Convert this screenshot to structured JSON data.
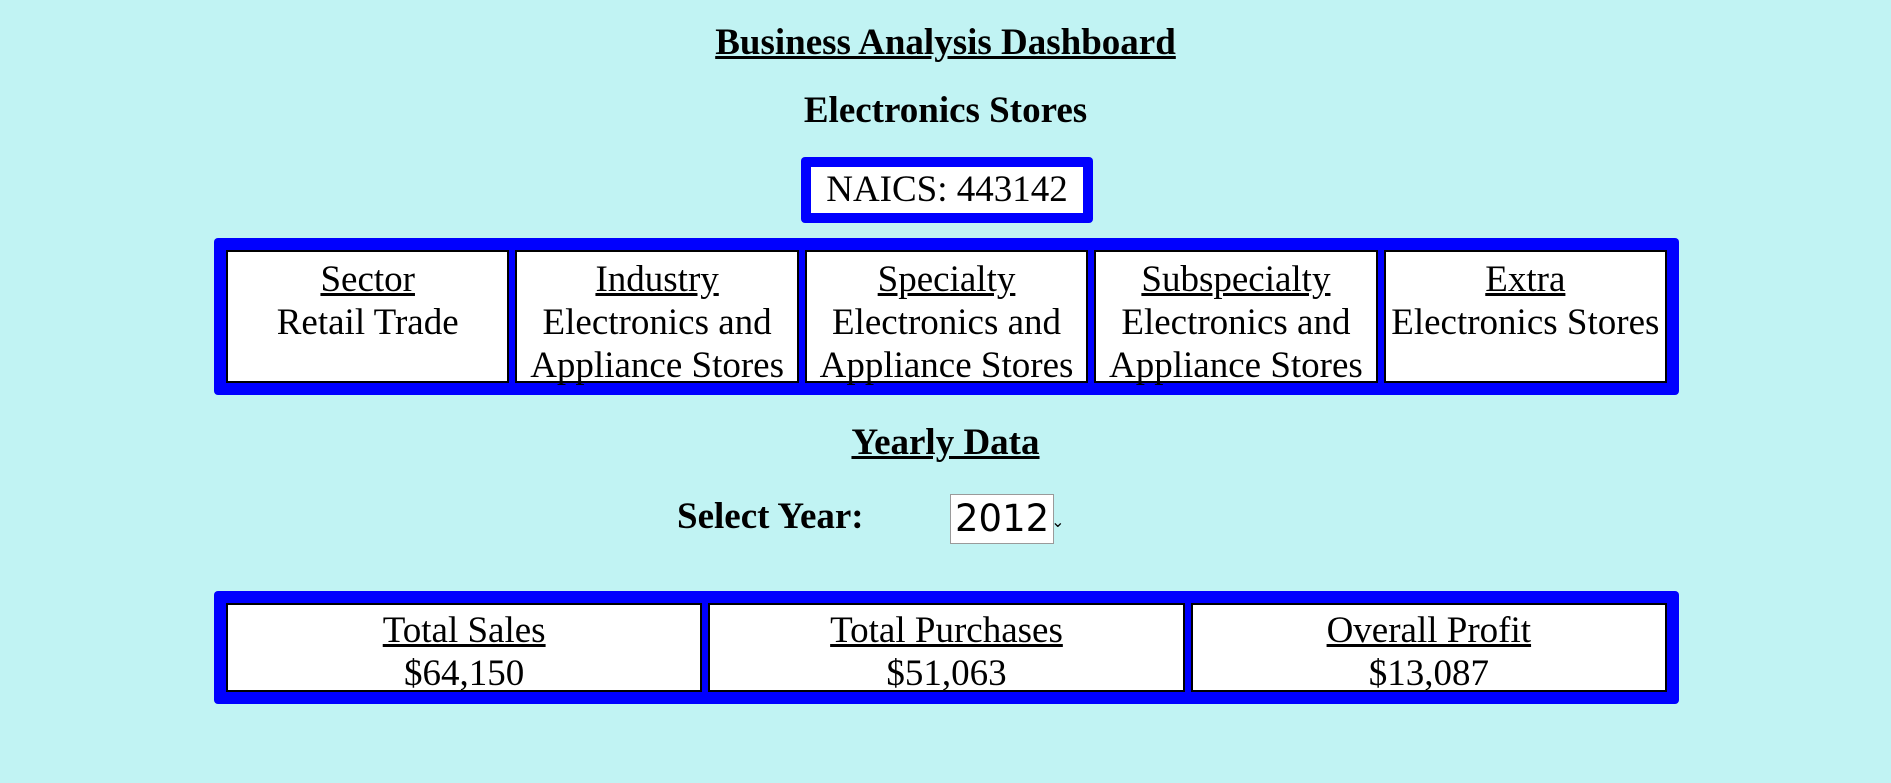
{
  "header": {
    "title": "Business Analysis Dashboard",
    "subtitle": "Electronics Stores"
  },
  "naics": {
    "text": "NAICS: 443142"
  },
  "classification": [
    {
      "label": "Sector",
      "value": "Retail Trade"
    },
    {
      "label": "Industry",
      "value": "Electronics and Appliance Stores"
    },
    {
      "label": "Specialty",
      "value": "Electronics and Appliance Stores"
    },
    {
      "label": "Subspecialty",
      "value": "Electronics and Appliance Stores"
    },
    {
      "label": "Extra",
      "value": "Electronics Stores"
    }
  ],
  "yearly": {
    "section_title": "Yearly Data",
    "select_label": "Select Year:",
    "selected_year": "2012"
  },
  "totals": [
    {
      "label": "Total Sales",
      "value": "$64,150"
    },
    {
      "label": "Total Purchases",
      "value": "$51,063"
    },
    {
      "label": "Overall Profit",
      "value": "$13,087"
    }
  ],
  "colors": {
    "background": "#c1f3f3",
    "panel": "#0000ff",
    "cell": "#ffffff"
  },
  "icons": {
    "select_arrow": "chevron-down-icon"
  }
}
